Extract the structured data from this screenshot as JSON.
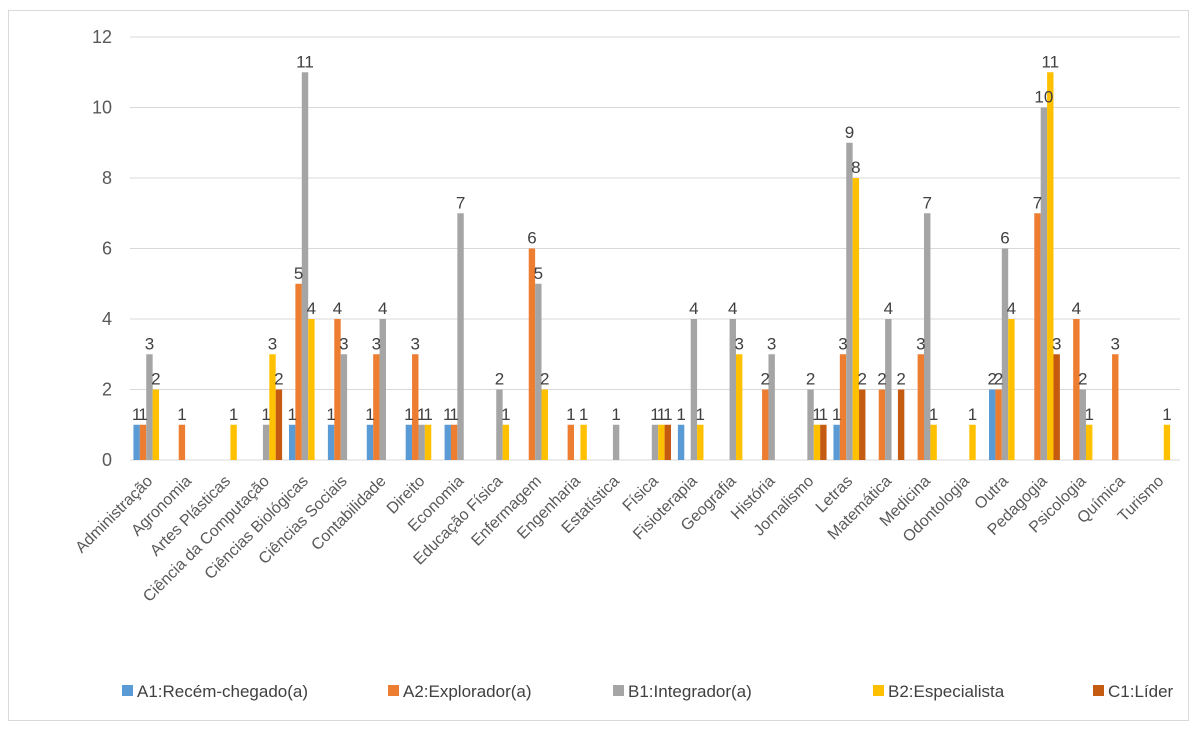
{
  "chart_data": {
    "type": "bar",
    "categories": [
      "Administração",
      "Agronomia",
      "Artes Plásticas",
      "Ciência da Computação",
      "Ciências Biológicas",
      "Ciências Sociais",
      "Contabilidade",
      "Direito",
      "Economia",
      "Educação Física",
      "Enfermagem",
      "Engenharia",
      "Estatística",
      "Física",
      "Fisioterapia",
      "Geografia",
      "História",
      "Jornalismo",
      "Letras",
      "Matemática",
      "Medicina",
      "Odontologia",
      "Outra",
      "Pedagogia",
      "Psicologia",
      "Química",
      "Turismo"
    ],
    "series": [
      {
        "name": "A1:Recém-chegado(a)",
        "color": "#5B9BD5",
        "values": [
          1,
          null,
          null,
          null,
          1,
          1,
          1,
          1,
          1,
          null,
          null,
          null,
          null,
          null,
          1,
          null,
          null,
          null,
          1,
          null,
          null,
          null,
          2,
          null,
          null,
          null,
          null
        ]
      },
      {
        "name": "A2:Explorador(a)",
        "color": "#ED7D31",
        "values": [
          1,
          1,
          null,
          null,
          5,
          4,
          3,
          3,
          1,
          null,
          6,
          1,
          null,
          null,
          null,
          null,
          2,
          null,
          3,
          2,
          3,
          null,
          2,
          7,
          4,
          3,
          null
        ]
      },
      {
        "name": "B1:Integrador(a)",
        "color": "#A5A5A5",
        "values": [
          3,
          null,
          null,
          1,
          11,
          3,
          4,
          1,
          7,
          2,
          5,
          null,
          1,
          1,
          4,
          4,
          3,
          2,
          9,
          4,
          7,
          null,
          6,
          10,
          2,
          null,
          null
        ]
      },
      {
        "name": "B2:Especialista",
        "color": "#FFC000",
        "values": [
          2,
          null,
          1,
          3,
          4,
          null,
          null,
          1,
          null,
          1,
          2,
          1,
          null,
          1,
          1,
          3,
          null,
          1,
          8,
          null,
          1,
          1,
          4,
          11,
          1,
          null,
          1
        ]
      },
      {
        "name": "C1:Líder",
        "color": "#C55A11",
        "values": [
          null,
          null,
          null,
          2,
          null,
          null,
          null,
          null,
          null,
          null,
          null,
          null,
          null,
          1,
          null,
          null,
          null,
          1,
          2,
          2,
          null,
          null,
          null,
          3,
          null,
          null,
          null
        ]
      }
    ],
    "ylim": [
      0,
      12
    ],
    "yticks": [
      0,
      2,
      4,
      6,
      8,
      10,
      12
    ],
    "title": "",
    "xlabel": "",
    "ylabel": "",
    "grid": true,
    "legend": "bottom"
  }
}
